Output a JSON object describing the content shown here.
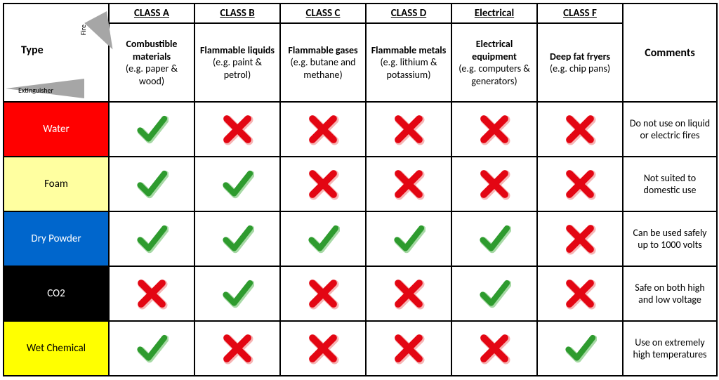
{
  "structure_type": "table",
  "colors": {
    "check": "#2e9b2e",
    "check_shadow": "#a7d9a5",
    "cross": "#e30613",
    "cross_shadow": "#f6b5b5",
    "border": "#000000",
    "arrow_gray": "#a6a6a6"
  },
  "axes": {
    "top_label": "Fire",
    "left_label": "Extinguisher",
    "cross_label": "Type"
  },
  "columns": [
    {
      "header": "CLASS A",
      "title": "Combustible materials",
      "example": "(e.g. paper & wood)"
    },
    {
      "header": "CLASS B",
      "title": "Flammable liquids",
      "example": "(e.g. paint & petrol)"
    },
    {
      "header": "CLASS C",
      "title": "Flammable gases",
      "example": "(e.g. butane and methane)"
    },
    {
      "header": "CLASS D",
      "title": "Flammable metals",
      "example": "(e.g. lithium & potassium)"
    },
    {
      "header": "Electrical",
      "title": "Electrical equipment",
      "example": "(e.g. computers & generators)"
    },
    {
      "header": "CLASS F",
      "title": "Deep fat fryers",
      "example": "(e.g. chip pans)"
    }
  ],
  "comments_header": "Comments",
  "extinguishers": [
    {
      "name": "Water",
      "bg": "#ff0000",
      "fg": "#ffffff",
      "marks": [
        "check",
        "cross",
        "cross",
        "cross",
        "cross",
        "cross"
      ],
      "comment": "Do not use on liquid or electric fires"
    },
    {
      "name": "Foam",
      "bg": "#ffffa0",
      "fg": "#000000",
      "marks": [
        "check",
        "check",
        "cross",
        "cross",
        "cross",
        "cross"
      ],
      "comment": "Not suited to domestic use"
    },
    {
      "name": "Dry Powder",
      "bg": "#0066cc",
      "fg": "#ffffff",
      "marks": [
        "check",
        "check",
        "check",
        "check",
        "check",
        "cross"
      ],
      "comment": "Can be used safely up to 1000 volts"
    },
    {
      "name": "CO2",
      "bg": "#000000",
      "fg": "#ffffff",
      "marks": [
        "cross",
        "check",
        "cross",
        "cross",
        "check",
        "cross"
      ],
      "comment": "Safe on both high and low voltage"
    },
    {
      "name": "Wet Chemical",
      "bg": "#ffff00",
      "fg": "#000000",
      "marks": [
        "check",
        "cross",
        "cross",
        "cross",
        "cross",
        "check"
      ],
      "comment": "Use on extremely high temperatures"
    }
  ]
}
